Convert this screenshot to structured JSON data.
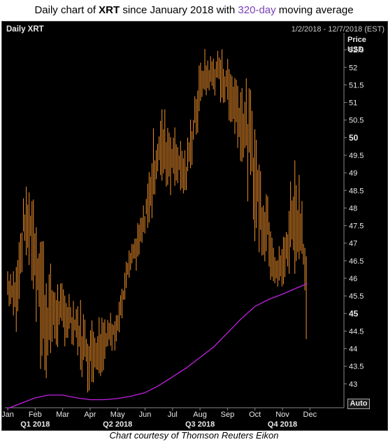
{
  "title": {
    "prefix": "Daily chart of ",
    "ticker": "XRT",
    "middle": " since January 2018 with ",
    "highlight": "320-day",
    "suffix": " moving average"
  },
  "panel": {
    "name": "Daily XRT",
    "date_range": "1/2/2018 - 12/7/2018 (EST)",
    "price_label": "Price",
    "unit_label": "USD",
    "auto_label": "Auto"
  },
  "caption": "Chart courtesy of Thomson Reuters Eikon",
  "colors": {
    "price": "#f0902c",
    "moving_average": "#c020e0",
    "background": "#000000",
    "text": "#e8e8e8"
  },
  "chart_data": {
    "type": "line",
    "y_ticks": [
      "43",
      "43.5",
      "44",
      "44.5",
      "45",
      "45.5",
      "46",
      "46.5",
      "47",
      "47.5",
      "48",
      "48.5",
      "49",
      "49.5",
      "50",
      "50.5",
      "51",
      "51.5",
      "52",
      "52.5"
    ],
    "bold_ticks": [
      "45",
      "50"
    ],
    "ylim": [
      42.4,
      52.9
    ],
    "x_months": [
      "Jan",
      "Feb",
      "Mar",
      "Apr",
      "May",
      "Jun",
      "Jul",
      "Aug",
      "Sep",
      "Oct",
      "Nov",
      "Dec"
    ],
    "x_quarters": [
      "Q1 2018",
      "Q2 2018",
      "Q3 2018",
      "Q4 2018"
    ],
    "series": [
      {
        "name": "XRT",
        "style": "daily high-low bars",
        "x_month": [
          0.0,
          0.3,
          0.6,
          0.9,
          1.15,
          1.4,
          1.7,
          2.0,
          2.3,
          2.6,
          2.9,
          3.2,
          3.5,
          3.8,
          4.1,
          4.4,
          4.7,
          5.0,
          5.3,
          5.6,
          5.9,
          6.2,
          6.5,
          6.8,
          7.1,
          7.4,
          7.7,
          8.0,
          8.3,
          8.6,
          8.9,
          9.2,
          9.5,
          9.8,
          10.1,
          10.4,
          10.7,
          10.9
        ],
        "high": [
          46.5,
          46.6,
          48.5,
          49.1,
          48.7,
          46.8,
          46.2,
          45.9,
          45.8,
          45.6,
          45.0,
          44.9,
          45.3,
          45.2,
          45.8,
          46.8,
          47.5,
          48.3,
          50.3,
          51.0,
          50.8,
          50.1,
          49.8,
          51.5,
          52.6,
          52.4,
          52.7,
          52.4,
          52.1,
          51.8,
          51.6,
          49.5,
          48.9,
          46.8,
          47.5,
          49.9,
          49.1,
          46.5
        ],
        "low": [
          45.2,
          44.3,
          46.8,
          45.5,
          42.8,
          43.0,
          43.8,
          44.1,
          43.9,
          43.2,
          42.7,
          43.1,
          43.3,
          43.7,
          44.3,
          45.8,
          46.2,
          47.1,
          47.8,
          48.6,
          48.3,
          48.7,
          48.0,
          49.5,
          50.8,
          51.2,
          51.0,
          50.6,
          49.8,
          49.0,
          47.2,
          46.4,
          45.9,
          45.4,
          45.7,
          46.0,
          46.1,
          43.8
        ]
      },
      {
        "name": "320-day",
        "style": "line",
        "x_month": [
          0.0,
          0.5,
          1.0,
          1.5,
          2.0,
          2.5,
          3.0,
          3.5,
          4.0,
          4.5,
          5.0,
          5.5,
          6.0,
          6.5,
          7.0,
          7.5,
          8.0,
          8.5,
          9.0,
          9.5,
          10.0,
          10.5,
          10.9
        ],
        "values": [
          42.3,
          42.45,
          42.6,
          42.68,
          42.68,
          42.6,
          42.55,
          42.55,
          42.58,
          42.65,
          42.75,
          42.95,
          43.2,
          43.45,
          43.75,
          44.05,
          44.45,
          44.85,
          45.2,
          45.4,
          45.55,
          45.72,
          45.85
        ]
      }
    ],
    "grid": false
  }
}
